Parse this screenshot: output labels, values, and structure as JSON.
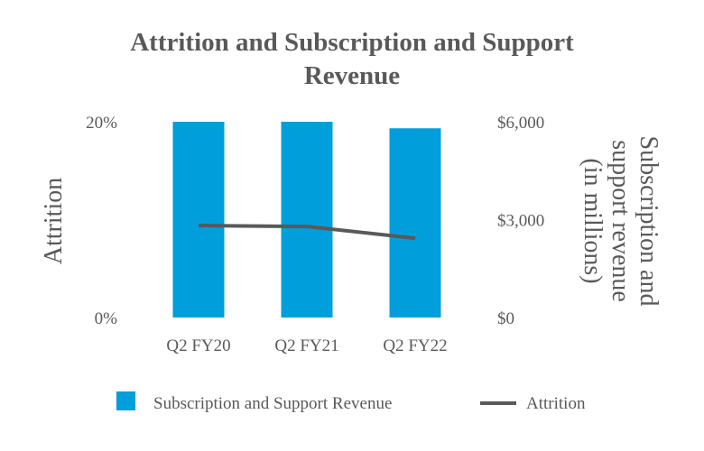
{
  "chart_data": {
    "type": "bar+line",
    "title_lines": [
      "Attrition and Subscription and Support",
      "Revenue"
    ],
    "categories": [
      "Q2 FY20",
      "Q2 FY21",
      "Q2 FY22"
    ],
    "series": [
      {
        "name": "Subscription and Support Revenue",
        "type": "bar",
        "axis": "right",
        "color": "#009EDB",
        "values": [
          6000,
          6000,
          5800
        ]
      },
      {
        "name": "Attrition",
        "type": "line",
        "axis": "left",
        "color": "#595959",
        "values": [
          9.4,
          9.3,
          8.1
        ]
      }
    ],
    "left_axis": {
      "label": "Attrition",
      "range": [
        0,
        20
      ],
      "tick_values": [
        0,
        20
      ],
      "tick_labels": [
        "0%",
        "20%"
      ]
    },
    "right_axis": {
      "label_lines": [
        "Subscription and",
        "support revenue",
        "(in millions)"
      ],
      "range": [
        0,
        6000
      ],
      "tick_values": [
        0,
        3000,
        6000
      ],
      "tick_labels": [
        "$0",
        "$3,000",
        "$6,000"
      ]
    },
    "legend": {
      "position": "bottom",
      "entries": [
        "Subscription and Support Revenue",
        "Attrition"
      ]
    },
    "grid": false
  }
}
